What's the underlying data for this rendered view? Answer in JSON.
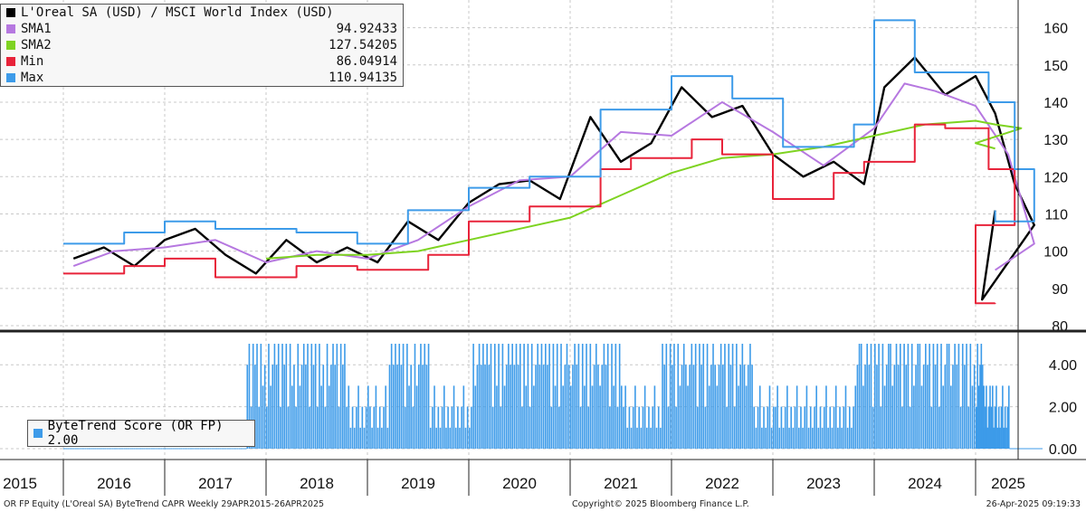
{
  "chart_data": [
    {
      "type": "line",
      "title": "L'Oreal SA (USD) / MSCI World Index (USD)",
      "ylim": [
        80,
        165
      ],
      "y_ticks": [
        80,
        90,
        100,
        110,
        120,
        130,
        140,
        150,
        160
      ],
      "x_ticks": [
        "2015",
        "2016",
        "2017",
        "2018",
        "2019",
        "2020",
        "2021",
        "2022",
        "2023",
        "2024",
        "2025"
      ],
      "series": [
        {
          "name": "L'Oreal SA (USD) / MSCI World Index (USD)",
          "color": "#000000",
          "x": [
            2015.1,
            2015.4,
            2015.7,
            2016.0,
            2016.3,
            2016.6,
            2016.9,
            2017.2,
            2017.5,
            2017.8,
            2018.1,
            2018.4,
            2018.7,
            2019.0,
            2019.3,
            2019.6,
            2019.9,
            2020.2,
            2020.5,
            2020.8,
            2021.1,
            2021.4,
            2021.7,
            2022.0,
            2022.3,
            2022.6,
            2022.9,
            2023.1,
            2023.4,
            2023.7,
            2024.0,
            2024.3,
            2024.6,
            2024.9,
            2025.1,
            2025.3
          ],
          "values": [
            98,
            101,
            96,
            103,
            106,
            99,
            94,
            103,
            97,
            101,
            97,
            108,
            103,
            113,
            118,
            119,
            114,
            136,
            124,
            129,
            144,
            136,
            139,
            126,
            120,
            124,
            118,
            144,
            152,
            142,
            147,
            137,
            118,
            107,
            87,
            110.94
          ]
        },
        {
          "name": "SMA1",
          "color": "#b678e0",
          "x": [
            2015.1,
            2015.5,
            2016.0,
            2016.5,
            2017.0,
            2017.5,
            2018.0,
            2018.5,
            2019.0,
            2019.5,
            2020.0,
            2020.5,
            2021.0,
            2021.5,
            2022.0,
            2022.5,
            2023.0,
            2023.3,
            2023.6,
            2024.0,
            2024.5,
            2024.9,
            2025.3
          ],
          "values": [
            96,
            100,
            101,
            103,
            97,
            100,
            98,
            103,
            112,
            119,
            120,
            132,
            131,
            140,
            132,
            123,
            133,
            145,
            143,
            139,
            126,
            102,
            94.92
          ]
        },
        {
          "name": "SMA2",
          "color": "#7ed321",
          "x": [
            2017.0,
            2017.5,
            2018.0,
            2018.5,
            2019.0,
            2019.5,
            2020.0,
            2020.5,
            2021.0,
            2021.5,
            2022.0,
            2022.5,
            2023.0,
            2023.5,
            2024.0,
            2024.3,
            2024.7,
            2025.0,
            2025.3
          ],
          "values": [
            98,
            99,
            99,
            100,
            103,
            106,
            109,
            115,
            121,
            125,
            126,
            128,
            131,
            134,
            135,
            134,
            133,
            129,
            127.54
          ]
        },
        {
          "name": "Min",
          "color": "#e8233a",
          "step": true,
          "x": [
            2015.0,
            2015.6,
            2016.0,
            2016.5,
            2017.3,
            2017.9,
            2018.6,
            2019.0,
            2019.6,
            2020.3,
            2020.6,
            2021.2,
            2021.5,
            2022.0,
            2022.6,
            2022.9,
            2023.4,
            2023.7,
            2024.2,
            2024.6,
            2025.0,
            2025.3
          ],
          "values": [
            94,
            96,
            98,
            93,
            96,
            95,
            99,
            108,
            112,
            122,
            125,
            130,
            126,
            114,
            121,
            124,
            134,
            133,
            122,
            107,
            86,
            86.05
          ]
        },
        {
          "name": "Max",
          "color": "#3d9be9",
          "step": true,
          "x": [
            2015.0,
            2015.6,
            2016.0,
            2016.5,
            2017.3,
            2017.9,
            2018.4,
            2019.0,
            2019.6,
            2020.3,
            2021.0,
            2021.6,
            2022.1,
            2022.8,
            2023.0,
            2023.4,
            2023.7,
            2024.2,
            2024.6,
            2024.9,
            2025.3
          ],
          "values": [
            102,
            105,
            108,
            106,
            105,
            102,
            111,
            117,
            120,
            138,
            147,
            141,
            128,
            134,
            162,
            148,
            148,
            140,
            122,
            108,
            110.94
          ]
        }
      ],
      "legend": {
        "title": "L'Oreal SA (USD) / MSCI World Index (USD)",
        "entries": [
          {
            "name": "SMA1",
            "value": "94.92433",
            "color": "#b678e0"
          },
          {
            "name": "SMA2",
            "value": "127.54205",
            "color": "#7ed321"
          },
          {
            "name": "Min",
            "value": "86.04914",
            "color": "#e8233a"
          },
          {
            "name": "Max",
            "value": "110.94135",
            "color": "#3d9be9"
          }
        ]
      }
    },
    {
      "type": "bar",
      "ylim": [
        0,
        5
      ],
      "y_ticks": [
        "0.00",
        "2.00",
        "4.00"
      ],
      "series": [
        {
          "name": "ByteTrend Score (OR FP)",
          "color": "#3d9be9",
          "x": [
            2015.0,
            2016.0,
            2016.8,
            2017.0,
            2017.5,
            2017.8,
            2018.2,
            2018.6,
            2019.0,
            2019.6,
            2020.1,
            2020.5,
            2020.9,
            2021.4,
            2021.8,
            2022.3,
            2022.8,
            2023.3,
            2023.7,
            2024.1,
            2024.5,
            2025.0,
            2025.3
          ],
          "values": [
            0,
            0,
            4,
            4,
            3,
            1,
            4,
            2,
            5,
            3,
            4,
            2,
            4,
            3,
            2,
            1,
            4,
            4,
            3,
            1,
            0,
            2,
            2.0
          ]
        }
      ],
      "legend": {
        "label": "ByteTrend Score (OR FP) 2.00"
      }
    }
  ],
  "footer": {
    "left": "OR FP Equity (L'Oreal SA) ByteTrend CAPR  Weekly 29APR2015-26APR2025",
    "center": "Copyright© 2025 Bloomberg Finance L.P.",
    "right": "26-Apr-2025 09:19:33"
  }
}
